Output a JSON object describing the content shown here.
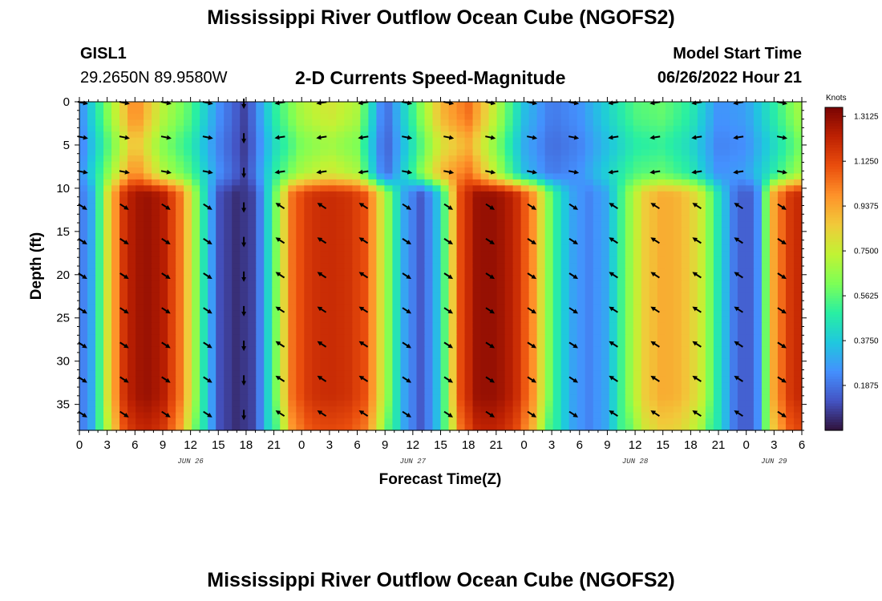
{
  "header": {
    "title": "Mississippi River Outflow Ocean Cube (NGOFS2)",
    "station_id": "GISL1",
    "station_coords": "29.2650N  89.9580W",
    "subtitle": "2-D Currents Speed-Magnitude",
    "model_label": "Model Start Time",
    "model_time": "06/26/2022 Hour 21"
  },
  "footer": {
    "title": "Mississippi River Outflow Ocean Cube (NGOFS2)"
  },
  "chart_data": {
    "type": "heatmap",
    "title": "2-D Currents Speed-Magnitude",
    "xlabel": "Forecast Time(Z)",
    "ylabel": "Depth (ft)",
    "xlim_hours": [
      0,
      78
    ],
    "ylim": [
      38,
      0
    ],
    "x_tick_labels": [
      "0",
      "3",
      "6",
      "9",
      "12",
      "15",
      "18",
      "21",
      "0",
      "3",
      "6",
      "9",
      "12",
      "15",
      "18",
      "21",
      "0",
      "3",
      "6",
      "9",
      "12",
      "15",
      "18",
      "21",
      "0",
      "3",
      "6"
    ],
    "x_tick_hours": [
      0,
      3,
      6,
      9,
      12,
      15,
      18,
      21,
      24,
      27,
      30,
      33,
      36,
      39,
      42,
      45,
      48,
      51,
      54,
      57,
      60,
      63,
      66,
      69,
      72,
      75,
      78
    ],
    "date_labels": [
      {
        "label": "JUN 26",
        "hour": 12
      },
      {
        "label": "JUN 27",
        "hour": 36
      },
      {
        "label": "JUN 28",
        "hour": 60
      },
      {
        "label": "JUN 29",
        "hour": 75
      }
    ],
    "y_ticks": [
      0,
      5,
      10,
      15,
      20,
      25,
      30,
      35
    ],
    "colorbar": {
      "unit": "Knots",
      "min": 0.0,
      "max": 1.35,
      "tick_labels": [
        "1.3125",
        "1.1250",
        "0.9375",
        "0.7500",
        "0.5625",
        "0.3750",
        "0.1875"
      ],
      "tick_values": [
        1.3125,
        1.125,
        0.9375,
        0.75,
        0.5625,
        0.375,
        0.1875
      ],
      "colors": [
        "#30123b",
        "#4454c4",
        "#4490fe",
        "#1fc8de",
        "#29efa2",
        "#7dff56",
        "#c1f334",
        "#f1ca3a",
        "#fe922a",
        "#ea4e0d",
        "#be2102",
        "#7a0403"
      ]
    },
    "deep_layer": {
      "from_depth_ft": 10,
      "description": "bottom layer speed (knots) at forecast hours",
      "hours": [
        0,
        1.5,
        3,
        5,
        7,
        9,
        11,
        13,
        15,
        17,
        19,
        21,
        23,
        25,
        27,
        29,
        31,
        33,
        35,
        37,
        39,
        41,
        43,
        45,
        47,
        49,
        51,
        53,
        55,
        57,
        59,
        61,
        63,
        65,
        67,
        69,
        71,
        73,
        75,
        77,
        78
      ],
      "speeds": [
        0.18,
        0.32,
        0.78,
        1.22,
        1.3,
        1.25,
        1.02,
        0.55,
        0.12,
        0.05,
        0.1,
        0.55,
        1.05,
        1.18,
        1.2,
        1.18,
        1.1,
        0.7,
        0.3,
        0.12,
        0.4,
        1.1,
        1.3,
        1.3,
        1.22,
        0.98,
        0.55,
        0.3,
        0.22,
        0.3,
        0.6,
        0.85,
        0.93,
        0.9,
        0.78,
        0.45,
        0.15,
        0.15,
        0.95,
        1.2,
        1.2
      ]
    },
    "surface_layer": {
      "to_depth_ft": 8,
      "description": "near-surface speed (knots) at forecast hours",
      "hours": [
        0,
        3,
        6,
        9,
        12,
        15,
        18,
        21,
        24,
        27,
        30,
        33,
        36,
        39,
        42,
        45,
        48,
        51,
        54,
        57,
        60,
        63,
        66,
        69,
        72,
        75,
        78
      ],
      "speeds": [
        0.22,
        0.62,
        1.02,
        0.72,
        0.55,
        0.25,
        0.08,
        0.48,
        0.7,
        0.78,
        0.7,
        0.15,
        0.52,
        0.9,
        1.05,
        0.72,
        0.35,
        0.2,
        0.25,
        0.4,
        0.55,
        0.58,
        0.48,
        0.25,
        0.28,
        0.48,
        0.7
      ]
    },
    "vector_columns": [
      {
        "hour": 0,
        "dir": "se"
      },
      {
        "hour": 4.5,
        "dir": "se"
      },
      {
        "hour": 9,
        "dir": "se"
      },
      {
        "hour": 13.5,
        "dir": "se"
      },
      {
        "hour": 17.5,
        "dir": "s"
      },
      {
        "hour": 21.5,
        "dir": "nw"
      },
      {
        "hour": 26,
        "dir": "nw"
      },
      {
        "hour": 30.5,
        "dir": "nw"
      },
      {
        "hour": 35,
        "dir": "se"
      },
      {
        "hour": 39.5,
        "dir": "se"
      },
      {
        "hour": 44,
        "dir": "se"
      },
      {
        "hour": 48.5,
        "dir": "se"
      },
      {
        "hour": 53,
        "dir": "se"
      },
      {
        "hour": 57.5,
        "dir": "nw"
      },
      {
        "hour": 62,
        "dir": "nw"
      },
      {
        "hour": 66.5,
        "dir": "nw"
      },
      {
        "hour": 71,
        "dir": "nw"
      },
      {
        "hour": 75.5,
        "dir": "se"
      }
    ],
    "vector_depths": [
      0,
      4,
      8,
      12,
      16,
      20,
      24,
      28,
      32,
      36
    ]
  }
}
